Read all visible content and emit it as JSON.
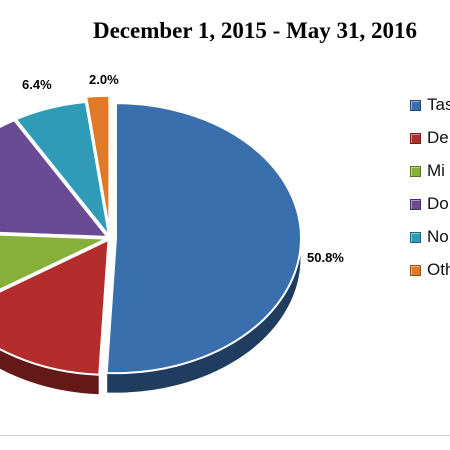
{
  "chart_data": {
    "type": "pie",
    "title": "December 1, 2015 - May 31, 2016",
    "legend_position": "right",
    "three_d": true,
    "exploded": true,
    "slices": [
      {
        "label": "Tas",
        "value": 50.8,
        "display": "50.8%",
        "color": "#3a6fad"
      },
      {
        "label": "De",
        "value": 15.0,
        "display": "",
        "color": "#b22d2b"
      },
      {
        "label": "Mi",
        "value": 10.0,
        "display": "",
        "color": "#87b03a"
      },
      {
        "label": "Do",
        "value": 15.8,
        "display": "",
        "color": "#6a4a92"
      },
      {
        "label": "No",
        "value": 6.4,
        "display": "6.4%",
        "color": "#2f9bb7"
      },
      {
        "label": "Oth",
        "value": 2.0,
        "display": "2.0%",
        "color": "#e07a26"
      }
    ]
  }
}
